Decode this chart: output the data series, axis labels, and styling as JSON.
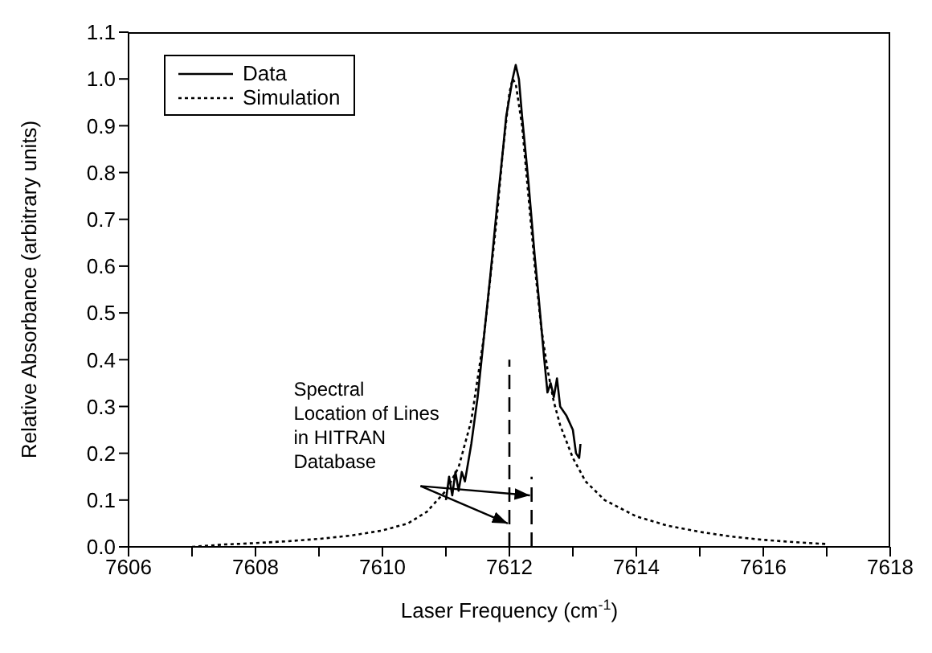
{
  "chart_data": {
    "type": "line",
    "xlabel": "Laser Frequency (cm$^{-1}$)",
    "ylabel": "Relative Absorbance (arbitrary units)",
    "xlim": [
      7606,
      7618
    ],
    "xticks": [
      7606,
      {
        "value": 7607,
        "label": null
      },
      7608,
      {
        "value": 7609,
        "label": null
      },
      7610,
      {
        "value": 7611,
        "label": null
      },
      7612,
      {
        "value": 7613,
        "label": null
      },
      7614,
      {
        "value": 7615,
        "label": null
      },
      7616,
      {
        "value": 7617,
        "label": null
      },
      7618
    ],
    "ylim": [
      0,
      1.1
    ],
    "yticks": [
      {
        "value": 0,
        "label": "0.0"
      },
      {
        "value": 0.1,
        "label": "0.1"
      },
      {
        "value": 0.2,
        "label": "0.2"
      },
      {
        "value": 0.3,
        "label": "0.3"
      },
      {
        "value": 0.4,
        "label": "0.4"
      },
      {
        "value": 0.5,
        "label": "0.5"
      },
      {
        "value": 0.6,
        "label": "0.6"
      },
      {
        "value": 0.7,
        "label": "0.7"
      },
      {
        "value": 0.8,
        "label": "0.8"
      },
      {
        "value": 0.9,
        "label": "0.9"
      },
      {
        "value": 1.0,
        "label": "1.0"
      },
      {
        "value": 1.1,
        "label": "1.1"
      }
    ],
    "grid": false,
    "legend": "top left",
    "marker": "none",
    "annotations": [
      {
        "text": "Spectral Location of Lines in HITRAN Database",
        "x": 7612.0,
        "y": 0.05
      }
    ],
    "series": [
      {
        "name": "Data",
        "color": "#000000",
        "line_style": "solid",
        "x": [
          7611.0,
          7611.05,
          7611.1,
          7611.15,
          7611.2,
          7611.25,
          7611.3,
          7611.4,
          7611.5,
          7611.6,
          7611.7,
          7611.8,
          7611.9,
          7611.95,
          7612.05,
          7612.1,
          7612.15,
          7612.2,
          7612.3,
          7612.4,
          7612.45,
          7612.55,
          7612.6,
          7612.65,
          7612.7,
          7612.75,
          7612.8,
          7612.9,
          7613.0,
          7613.05,
          7613.1,
          7613.12
        ],
        "values": [
          0.1,
          0.15,
          0.11,
          0.16,
          0.12,
          0.16,
          0.14,
          0.22,
          0.32,
          0.45,
          0.58,
          0.72,
          0.85,
          0.92,
          1.0,
          1.03,
          1.0,
          0.92,
          0.78,
          0.62,
          0.55,
          0.4,
          0.33,
          0.35,
          0.32,
          0.36,
          0.3,
          0.28,
          0.25,
          0.2,
          0.19,
          0.22
        ]
      },
      {
        "name": "Simulation",
        "color": "#000000",
        "line_style": "dotted",
        "x": [
          7607.0,
          7607.5,
          7608.0,
          7608.5,
          7609.0,
          7609.5,
          7610.0,
          7610.4,
          7610.7,
          7611.0,
          7611.2,
          7611.4,
          7611.6,
          7611.8,
          7611.9,
          7612.0,
          7612.05,
          7612.1,
          7612.2,
          7612.3,
          7612.4,
          7612.5,
          7612.6,
          7612.7,
          7612.8,
          7613.0,
          7613.2,
          7613.5,
          7614.0,
          7614.5,
          7615.0,
          7615.5,
          7616.0,
          7616.5,
          7617.0
        ],
        "values": [
          0.0,
          0.005,
          0.008,
          0.012,
          0.017,
          0.024,
          0.035,
          0.05,
          0.075,
          0.12,
          0.17,
          0.27,
          0.45,
          0.7,
          0.85,
          0.97,
          1.0,
          0.99,
          0.9,
          0.75,
          0.6,
          0.47,
          0.38,
          0.31,
          0.26,
          0.19,
          0.14,
          0.1,
          0.065,
          0.045,
          0.032,
          0.022,
          0.015,
          0.01,
          0.006
        ]
      },
      {
        "color": "#000000",
        "line_style": "dashed",
        "x": [
          7612.0,
          7612.0
        ],
        "values": [
          0,
          0.4
        ]
      },
      {
        "color": "#000000",
        "line_style": "dashed",
        "x": [
          7612.35,
          7612.35
        ],
        "values": [
          0,
          0.15
        ]
      }
    ]
  }
}
